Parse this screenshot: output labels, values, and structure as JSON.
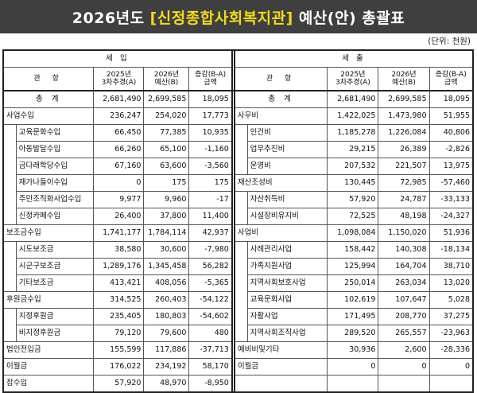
{
  "banner": {
    "prefix": "2026년도",
    "org": "[신정종합사회복지관]",
    "suffix": "예산(안) 총괄표"
  },
  "unit_note": "(단위: 천원)",
  "income": {
    "section_label": "세 입",
    "col_item": "관 항",
    "col_2025": [
      "2025년",
      "3차추경(A)"
    ],
    "col_2026": [
      "2026년",
      "예산(B)"
    ],
    "col_diff": [
      "증감(B-A)",
      "금액"
    ],
    "total": {
      "label": "총 계",
      "v2025": "2,681,490",
      "v2026": "2,699,585",
      "diff": "18,095"
    },
    "rows": [
      {
        "label": "사업수입",
        "level": "kwan",
        "v2025": "236,247",
        "v2026": "254,020",
        "diff": "17,773"
      },
      {
        "label": "교육문화수입",
        "level": "hang",
        "v2025": "66,450",
        "v2026": "77,385",
        "diff": "10,935"
      },
      {
        "label": "아동발달수입",
        "level": "hang",
        "v2025": "66,260",
        "v2026": "65,100",
        "diff": "-1,160"
      },
      {
        "label": "금다래학당수입",
        "level": "hang",
        "v2025": "67,160",
        "v2026": "63,600",
        "diff": "-3,560"
      },
      {
        "label": "재가나들이수입",
        "level": "hang",
        "v2025": "0",
        "v2026": "175",
        "diff": "175"
      },
      {
        "label": "주민조직화사업수입",
        "level": "hang",
        "v2025": "9,977",
        "v2026": "9,960",
        "diff": "-17"
      },
      {
        "label": "신정카페수입",
        "level": "hang",
        "v2025": "26,400",
        "v2026": "37,800",
        "diff": "11,400"
      },
      {
        "label": "보조금수입",
        "level": "kwan",
        "v2025": "1,741,177",
        "v2026": "1,784,114",
        "diff": "42,937"
      },
      {
        "label": "시도보조금",
        "level": "hang",
        "v2025": "38,580",
        "v2026": "30,600",
        "diff": "-7,980"
      },
      {
        "label": "시군구보조금",
        "level": "hang",
        "v2025": "1,289,176",
        "v2026": "1,345,458",
        "diff": "56,282"
      },
      {
        "label": "기타보조금",
        "level": "hang",
        "v2025": "413,421",
        "v2026": "408,056",
        "diff": "-5,365"
      },
      {
        "label": "후원금수입",
        "level": "kwan",
        "v2025": "314,525",
        "v2026": "260,403",
        "diff": "-54,122"
      },
      {
        "label": "지정후원금",
        "level": "hang",
        "v2025": "235,405",
        "v2026": "180,803",
        "diff": "-54,602"
      },
      {
        "label": "비지정후원금",
        "level": "hang",
        "v2025": "79,120",
        "v2026": "79,600",
        "diff": "480"
      },
      {
        "label": "법인전입금",
        "level": "kwan",
        "v2025": "155,599",
        "v2026": "117,886",
        "diff": "-37,713"
      },
      {
        "label": "이월금",
        "level": "kwan",
        "v2025": "176,022",
        "v2026": "234,192",
        "diff": "58,170"
      },
      {
        "label": "잡수입",
        "level": "kwan",
        "v2025": "57,920",
        "v2026": "48,970",
        "diff": "-8,950"
      }
    ]
  },
  "expense": {
    "section_label": "세 출",
    "col_item": "관 항",
    "col_2025": [
      "2025년",
      "3차추경(A)"
    ],
    "col_2026": [
      "2026년",
      "예산(B)"
    ],
    "col_diff": [
      "증감(B-A)",
      "금액"
    ],
    "total": {
      "label": "총 계",
      "v2025": "2,681,490",
      "v2026": "2,699,585",
      "diff": "18,095"
    },
    "rows": [
      {
        "label": "사무비",
        "level": "kwan",
        "v2025": "1,422,025",
        "v2026": "1,473,980",
        "diff": "51,955"
      },
      {
        "label": "인건비",
        "level": "hang",
        "v2025": "1,185,278",
        "v2026": "1,226,084",
        "diff": "40,806"
      },
      {
        "label": "업무추진비",
        "level": "hang",
        "v2025": "29,215",
        "v2026": "26,389",
        "diff": "-2,826"
      },
      {
        "label": "운영비",
        "level": "hang",
        "v2025": "207,532",
        "v2026": "221,507",
        "diff": "13,975"
      },
      {
        "label": "재산조성비",
        "level": "kwan",
        "v2025": "130,445",
        "v2026": "72,985",
        "diff": "-57,460"
      },
      {
        "label": "자산취득비",
        "level": "hang",
        "v2025": "57,920",
        "v2026": "24,787",
        "diff": "-33,133"
      },
      {
        "label": "시설장비유지비",
        "level": "hang",
        "v2025": "72,525",
        "v2026": "48,198",
        "diff": "-24,327"
      },
      {
        "label": "사업비",
        "level": "kwan",
        "v2025": "1,098,084",
        "v2026": "1,150,020",
        "diff": "51,936"
      },
      {
        "label": "사례관리사업",
        "level": "hang",
        "v2025": "158,442",
        "v2026": "140,308",
        "diff": "-18,134"
      },
      {
        "label": "가족지원사업",
        "level": "hang",
        "v2025": "125,994",
        "v2026": "164,704",
        "diff": "38,710"
      },
      {
        "label": "지역사회보호사업",
        "level": "hang",
        "v2025": "250,014",
        "v2026": "263,034",
        "diff": "13,020"
      },
      {
        "label": "교육문화사업",
        "level": "hang",
        "v2025": "102,619",
        "v2026": "107,647",
        "diff": "5,028"
      },
      {
        "label": "자활사업",
        "level": "hang",
        "v2025": "171,495",
        "v2026": "208,770",
        "diff": "37,275"
      },
      {
        "label": "지역사회조직사업",
        "level": "hang",
        "v2025": "289,520",
        "v2026": "265,557",
        "diff": "-23,963"
      },
      {
        "label": "예비비및기타",
        "level": "kwan",
        "v2025": "30,936",
        "v2026": "2,600",
        "diff": "-28,336"
      },
      {
        "label": "이월금",
        "level": "kwan",
        "v2025": "0",
        "v2026": "0",
        "diff": "0"
      },
      {
        "label": "",
        "level": "blank",
        "v2025": "",
        "v2026": "",
        "diff": ""
      }
    ]
  }
}
